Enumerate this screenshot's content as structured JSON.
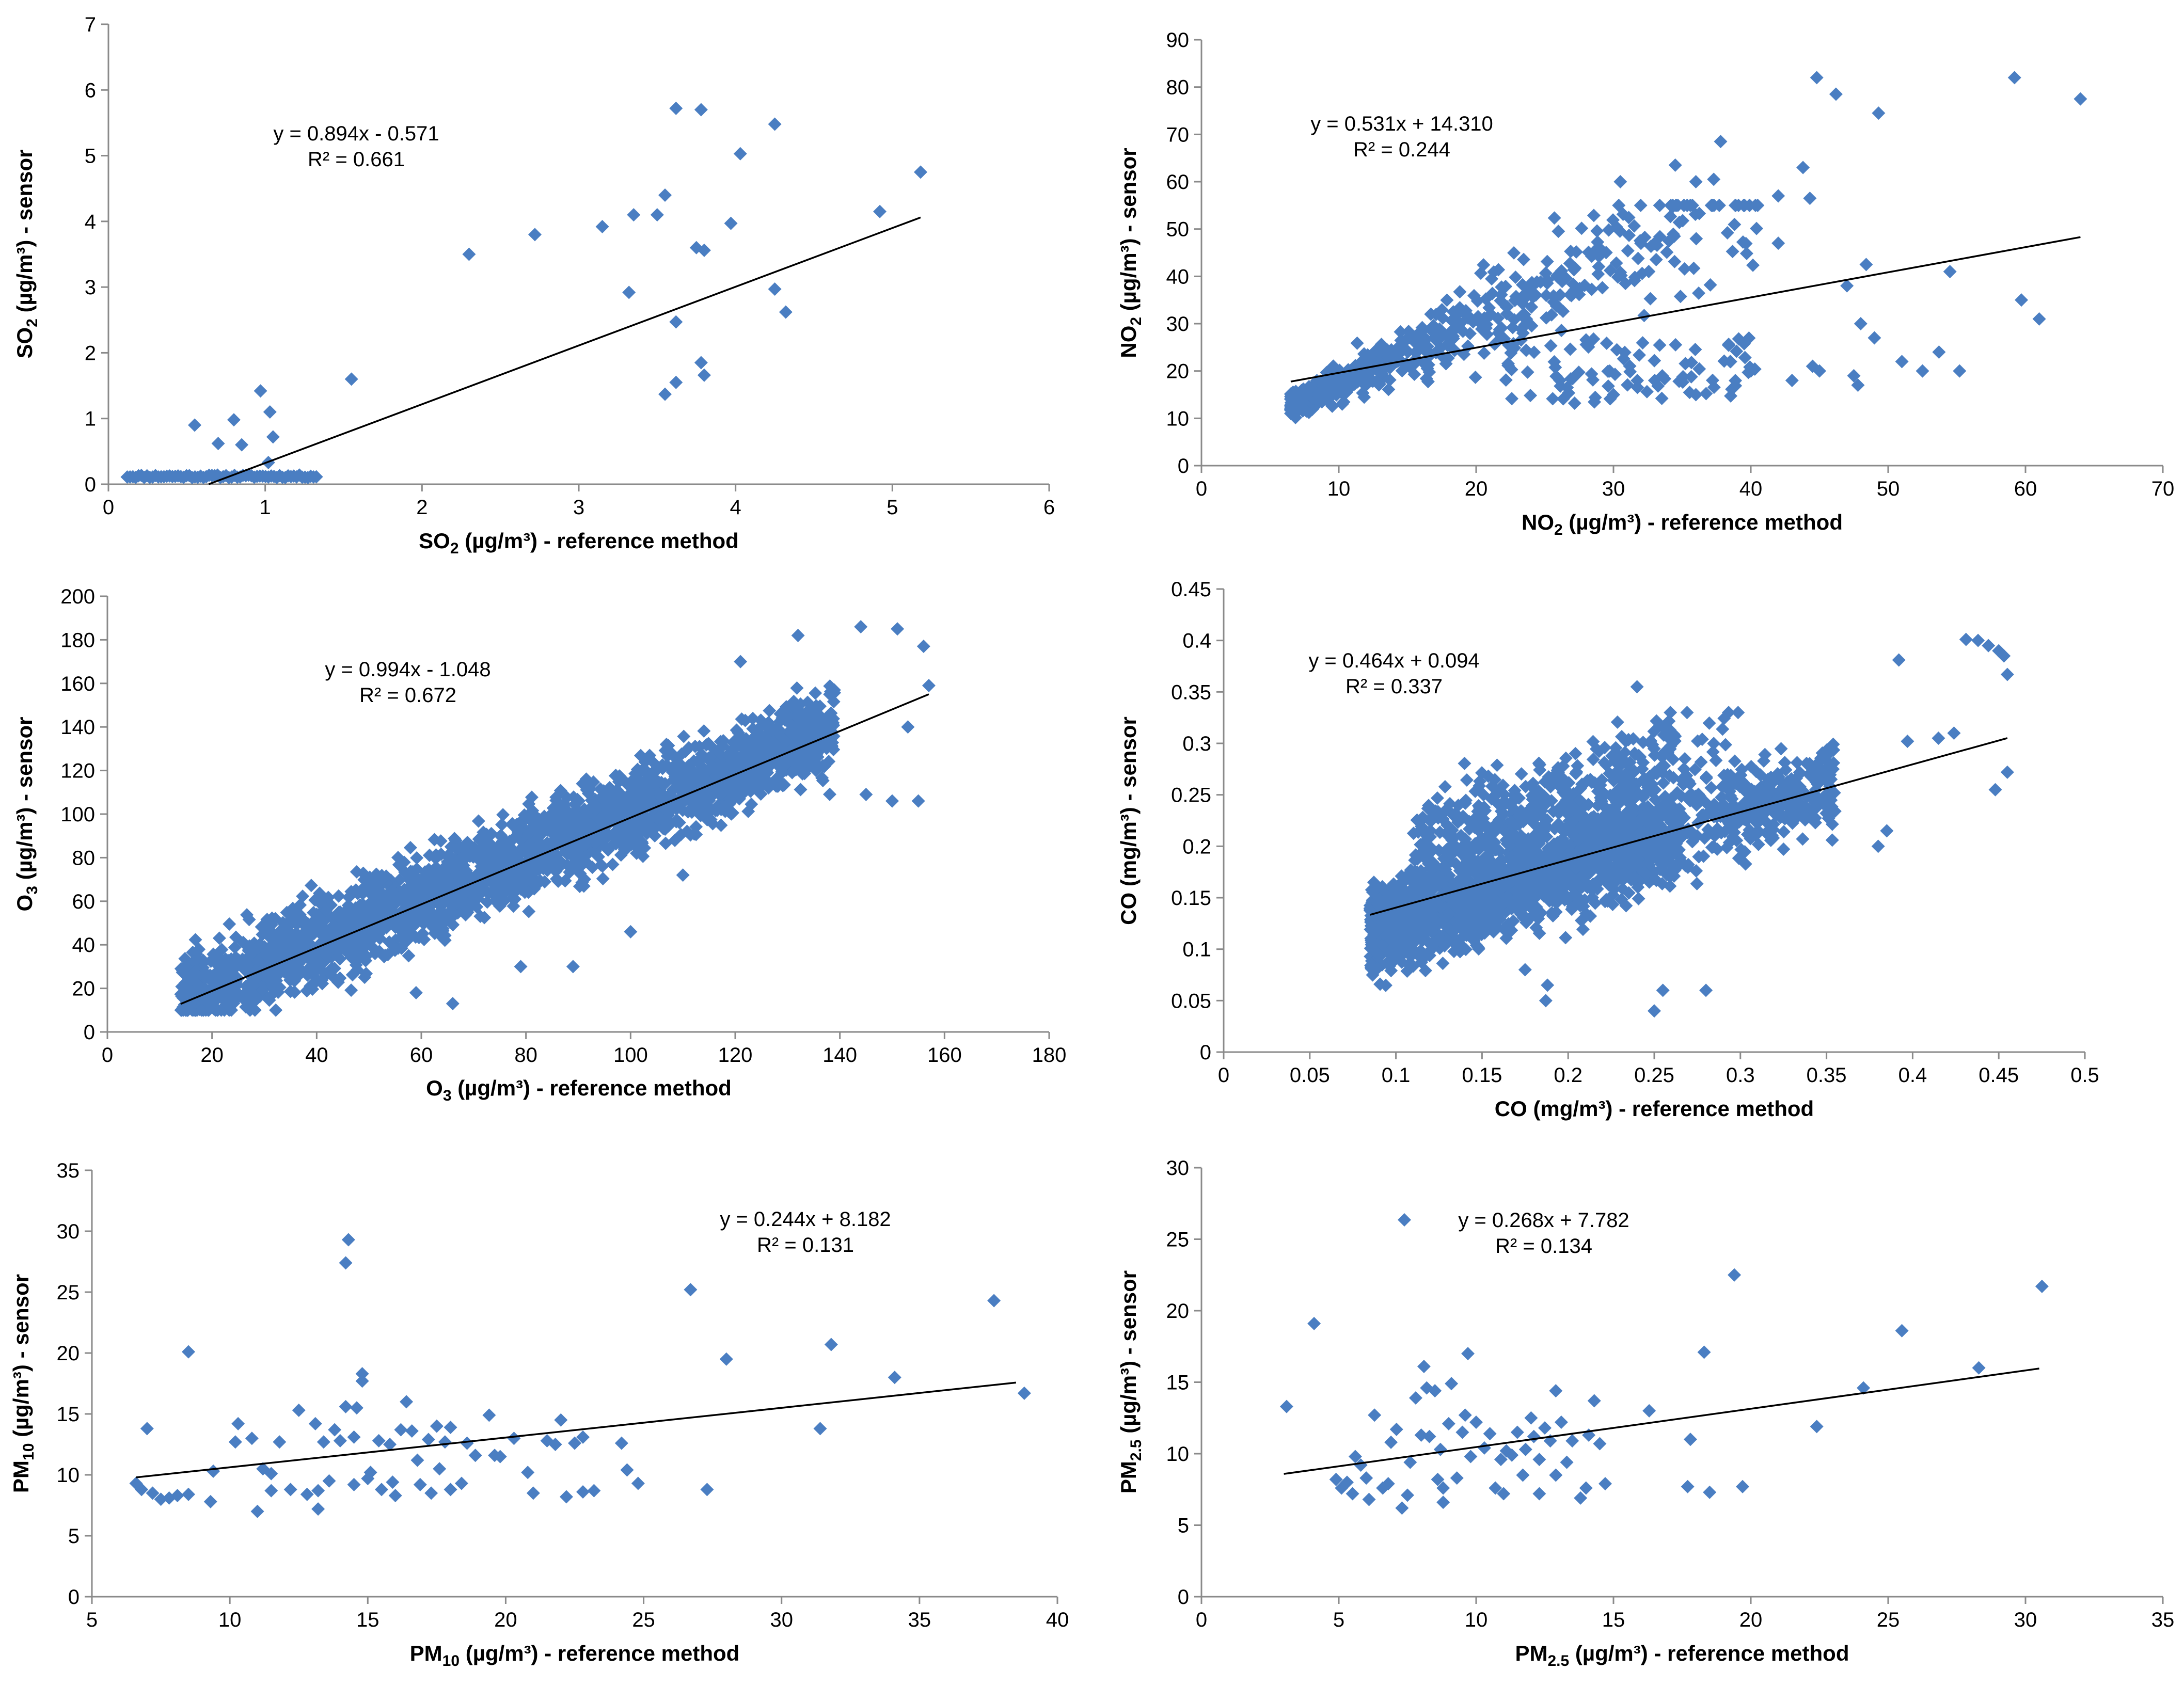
{
  "colors": {
    "marker": "#4a7ec2",
    "axis": "#8a8a8a",
    "trendline": "#000000",
    "background": "#ffffff"
  },
  "chart_data": [
    {
      "id": "so2",
      "type": "scatter",
      "xlabel": {
        "main": "SO",
        "sub": "2",
        "tail": " (µg/m³)  - reference method"
      },
      "ylabel": {
        "main": "SO",
        "sub": "2",
        "tail": " (µg/m³) - sensor"
      },
      "xlim": [
        0,
        6
      ],
      "xstep": 1,
      "ylim": [
        0,
        7
      ],
      "ystep": 1,
      "equation": "y = 0.894x - 0.571",
      "r2": "R² = 0.661",
      "trend": {
        "slope": 0.894,
        "intercept": -0.571,
        "x_range": [
          0.64,
          5.18
        ]
      },
      "gen": "so2",
      "points": [
        [
          0.55,
          0.9
        ],
        [
          0.7,
          0.62
        ],
        [
          0.8,
          0.98
        ],
        [
          0.85,
          0.6
        ],
        [
          0.97,
          1.42
        ],
        [
          1.03,
          1.1
        ],
        [
          1.05,
          0.72
        ],
        [
          1.02,
          0.33
        ],
        [
          1.55,
          1.6
        ],
        [
          2.3,
          3.5
        ],
        [
          2.72,
          3.8
        ],
        [
          3.15,
          3.92
        ],
        [
          3.32,
          2.92
        ],
        [
          3.35,
          4.1
        ],
        [
          3.5,
          4.1
        ],
        [
          3.55,
          4.4
        ],
        [
          3.55,
          1.37
        ],
        [
          3.62,
          5.72
        ],
        [
          3.62,
          2.47
        ],
        [
          3.62,
          1.55
        ],
        [
          3.75,
          3.6
        ],
        [
          3.78,
          5.7
        ],
        [
          3.78,
          1.85
        ],
        [
          3.8,
          3.56
        ],
        [
          3.8,
          1.66
        ],
        [
          3.97,
          3.97
        ],
        [
          4.03,
          5.03
        ],
        [
          4.25,
          5.48
        ],
        [
          4.25,
          2.97
        ],
        [
          4.32,
          2.62
        ],
        [
          4.92,
          4.15
        ],
        [
          5.18,
          4.75
        ]
      ]
    },
    {
      "id": "no2",
      "type": "scatter",
      "xlabel": {
        "main": "NO",
        "sub": "2",
        "tail": " (µg/m³)  - reference method"
      },
      "ylabel": {
        "main": "NO",
        "sub": "2",
        "tail": " (µg/m³) - sensor"
      },
      "xlim": [
        0,
        70
      ],
      "xstep": 10,
      "ylim": [
        0,
        90
      ],
      "ystep": 10,
      "equation": "y = 0.531x + 14.310",
      "r2": "R² = 0.244",
      "trend": {
        "slope": 0.531,
        "intercept": 14.31,
        "x_range": [
          6.5,
          64
        ]
      },
      "gen": "no2",
      "points": [
        [
          44.8,
          82
        ],
        [
          59.2,
          82
        ],
        [
          64,
          77.5
        ],
        [
          46.2,
          78.5
        ],
        [
          49.3,
          74.5
        ],
        [
          37.8,
          68.5
        ],
        [
          34.5,
          63.5
        ],
        [
          43.8,
          63
        ],
        [
          30.5,
          60
        ],
        [
          36,
          60
        ],
        [
          37.3,
          60.5
        ],
        [
          40.5,
          55
        ],
        [
          42,
          57
        ],
        [
          44.3,
          56.5
        ],
        [
          42,
          47
        ],
        [
          47,
          38
        ],
        [
          48.4,
          42.5
        ],
        [
          54.5,
          41
        ],
        [
          59.7,
          35
        ],
        [
          61,
          31
        ],
        [
          48,
          30
        ],
        [
          49,
          27
        ],
        [
          52.5,
          20
        ],
        [
          53.7,
          24
        ],
        [
          55.2,
          20
        ],
        [
          51,
          22
        ],
        [
          47.5,
          19
        ],
        [
          47.8,
          17
        ],
        [
          44.5,
          21
        ],
        [
          45,
          20
        ],
        [
          43,
          18
        ],
        [
          40,
          20
        ],
        [
          38.5,
          22
        ],
        [
          36,
          15
        ],
        [
          33,
          18
        ],
        [
          30,
          15
        ]
      ]
    },
    {
      "id": "o3",
      "type": "scatter",
      "xlabel": {
        "main": "O",
        "sub": "3",
        "tail": " (µg/m³)  - reference method"
      },
      "ylabel": {
        "main": "O",
        "sub": "3",
        "tail": " (µg/m³) - sensor"
      },
      "xlim": [
        0,
        180
      ],
      "xstep": 20,
      "ylim": [
        0,
        200
      ],
      "ystep": 20,
      "equation": "y = 0.994x - 1.048",
      "r2": "R² = 0.672",
      "trend": {
        "slope": 0.994,
        "intercept": -1.048,
        "x_range": [
          14,
          157
        ]
      },
      "gen": "o3",
      "points": [
        [
          144,
          186
        ],
        [
          151,
          185
        ],
        [
          156,
          177
        ],
        [
          157,
          159
        ],
        [
          153,
          140
        ],
        [
          145,
          109
        ],
        [
          150,
          106
        ],
        [
          155,
          106
        ],
        [
          132,
          182
        ],
        [
          121,
          170
        ],
        [
          110,
          72
        ],
        [
          100,
          46
        ],
        [
          89,
          30
        ],
        [
          79,
          30
        ],
        [
          66,
          13
        ],
        [
          59,
          18
        ],
        [
          18,
          10
        ]
      ]
    },
    {
      "id": "co",
      "type": "scatter",
      "xlabel": {
        "main": "CO",
        "sub": "",
        "tail": " (mg/m³)  - reference method"
      },
      "ylabel": {
        "main": "CO",
        "sub": "",
        "tail": " (mg/m³) - sensor"
      },
      "xlim": [
        0,
        0.5
      ],
      "xstep": 0.05,
      "ylim": [
        0,
        0.45
      ],
      "ystep": 0.05,
      "equation": "y = 0.464x + 0.094",
      "r2": "R² = 0.337",
      "trend": {
        "slope": 0.464,
        "intercept": 0.094,
        "x_range": [
          0.085,
          0.455
        ]
      },
      "gen": "co",
      "points": [
        [
          0.431,
          0.401
        ],
        [
          0.438,
          0.4
        ],
        [
          0.444,
          0.395
        ],
        [
          0.45,
          0.39
        ],
        [
          0.453,
          0.385
        ],
        [
          0.455,
          0.367
        ],
        [
          0.455,
          0.272
        ],
        [
          0.448,
          0.255
        ],
        [
          0.392,
          0.381
        ],
        [
          0.424,
          0.31
        ],
        [
          0.415,
          0.305
        ],
        [
          0.397,
          0.302
        ],
        [
          0.38,
          0.2
        ],
        [
          0.385,
          0.215
        ],
        [
          0.24,
          0.355
        ],
        [
          0.25,
          0.04
        ],
        [
          0.255,
          0.06
        ],
        [
          0.28,
          0.06
        ],
        [
          0.187,
          0.05
        ],
        [
          0.188,
          0.065
        ],
        [
          0.175,
          0.08
        ]
      ]
    },
    {
      "id": "pm10",
      "type": "scatter",
      "xlabel": {
        "main": "PM",
        "sub": "10",
        "tail": " (µg/m³)  - reference method"
      },
      "ylabel": {
        "main": "PM",
        "sub": "10",
        "tail": " (µg/m³) - sensor"
      },
      "xlim": [
        5,
        40
      ],
      "xstep": 5,
      "ylim": [
        0,
        35
      ],
      "ystep": 5,
      "equation": "y = 0.244x + 8.182",
      "r2": "R² = 0.131",
      "trend": {
        "slope": 0.244,
        "intercept": 8.182,
        "x_range": [
          6.6,
          38.5
        ]
      },
      "gen": "none",
      "points": [
        [
          6.6,
          9.3
        ],
        [
          6.8,
          8.8
        ],
        [
          7,
          13.8
        ],
        [
          7.2,
          8.5
        ],
        [
          7.5,
          8
        ],
        [
          7.8,
          8.1
        ],
        [
          8.1,
          8.3
        ],
        [
          8.5,
          8.4
        ],
        [
          8.5,
          20.1
        ],
        [
          9.3,
          7.8
        ],
        [
          9.4,
          10.3
        ],
        [
          10.2,
          12.7
        ],
        [
          10.3,
          14.2
        ],
        [
          10.8,
          13
        ],
        [
          11,
          7
        ],
        [
          11.2,
          10.5
        ],
        [
          11.5,
          10.1
        ],
        [
          11.5,
          8.7
        ],
        [
          11.8,
          12.7
        ],
        [
          12.2,
          8.8
        ],
        [
          12.5,
          15.3
        ],
        [
          12.8,
          8.4
        ],
        [
          13.1,
          14.2
        ],
        [
          13.2,
          8.7
        ],
        [
          13.2,
          7.2
        ],
        [
          13.4,
          12.7
        ],
        [
          13.6,
          9.5
        ],
        [
          13.8,
          13.7
        ],
        [
          14,
          12.8
        ],
        [
          14.2,
          15.6
        ],
        [
          14.2,
          27.4
        ],
        [
          14.3,
          29.3
        ],
        [
          14.5,
          13.1
        ],
        [
          14.5,
          9.2
        ],
        [
          14.6,
          15.5
        ],
        [
          14.8,
          17.7
        ],
        [
          14.8,
          18.3
        ],
        [
          15,
          9.7
        ],
        [
          15.1,
          10.2
        ],
        [
          15.4,
          12.8
        ],
        [
          15.5,
          8.8
        ],
        [
          15.8,
          12.5
        ],
        [
          15.9,
          9.4
        ],
        [
          16,
          8.3
        ],
        [
          16.2,
          13.7
        ],
        [
          16.4,
          16
        ],
        [
          16.6,
          13.6
        ],
        [
          16.8,
          11.2
        ],
        [
          16.9,
          9.2
        ],
        [
          17.2,
          12.9
        ],
        [
          17.3,
          8.5
        ],
        [
          17.5,
          14
        ],
        [
          17.6,
          10.5
        ],
        [
          17.8,
          12.7
        ],
        [
          18,
          13.9
        ],
        [
          18,
          8.8
        ],
        [
          18.4,
          9.3
        ],
        [
          18.6,
          12.6
        ],
        [
          18.9,
          11.6
        ],
        [
          19.4,
          14.9
        ],
        [
          19.6,
          11.6
        ],
        [
          19.8,
          11.5
        ],
        [
          20.3,
          13
        ],
        [
          20.8,
          10.2
        ],
        [
          21,
          8.5
        ],
        [
          21.5,
          12.8
        ],
        [
          21.8,
          12.5
        ],
        [
          22,
          14.5
        ],
        [
          22.2,
          8.2
        ],
        [
          22.5,
          12.6
        ],
        [
          22.8,
          13.1
        ],
        [
          22.8,
          8.6
        ],
        [
          23.2,
          8.7
        ],
        [
          24.2,
          12.6
        ],
        [
          24.4,
          10.4
        ],
        [
          24.8,
          9.3
        ],
        [
          26.7,
          25.2
        ],
        [
          27.3,
          8.8
        ],
        [
          28,
          19.5
        ],
        [
          31.4,
          13.8
        ],
        [
          31.8,
          20.7
        ],
        [
          34.1,
          18
        ],
        [
          37.7,
          24.3
        ],
        [
          38.8,
          16.7
        ]
      ]
    },
    {
      "id": "pm25",
      "type": "scatter",
      "xlabel": {
        "main": "PM",
        "sub": "2.5",
        "tail": " (µg/m³)  - reference method"
      },
      "ylabel": {
        "main": "PM",
        "sub": "2.5",
        "tail": " (µg/m³) - sensor"
      },
      "xlim": [
        0,
        35
      ],
      "xstep": 5,
      "ylim": [
        0,
        30
      ],
      "ystep": 5,
      "equation": "y = 0.268x + 7.782",
      "r2": "R² = 0.134",
      "trend": {
        "slope": 0.268,
        "intercept": 7.782,
        "x_range": [
          3,
          30.5
        ]
      },
      "legend_marker": true,
      "gen": "none",
      "points": [
        [
          3.1,
          13.3
        ],
        [
          4.1,
          19.1
        ],
        [
          4.9,
          8.2
        ],
        [
          5.1,
          7.6
        ],
        [
          5.3,
          8
        ],
        [
          5.5,
          7.2
        ],
        [
          5.6,
          9.8
        ],
        [
          5.8,
          9.2
        ],
        [
          6,
          8.3
        ],
        [
          6.1,
          6.8
        ],
        [
          6.3,
          12.7
        ],
        [
          6.6,
          7.6
        ],
        [
          6.8,
          7.9
        ],
        [
          6.9,
          10.8
        ],
        [
          7.1,
          11.7
        ],
        [
          7.3,
          6.2
        ],
        [
          7.5,
          7.1
        ],
        [
          7.6,
          9.4
        ],
        [
          7.8,
          13.9
        ],
        [
          8,
          11.3
        ],
        [
          8.1,
          16.1
        ],
        [
          8.2,
          14.6
        ],
        [
          8.3,
          11.2
        ],
        [
          8.5,
          14.4
        ],
        [
          8.6,
          8.2
        ],
        [
          8.7,
          10.3
        ],
        [
          8.8,
          7.6
        ],
        [
          8.8,
          6.6
        ],
        [
          9,
          12.1
        ],
        [
          9.1,
          14.9
        ],
        [
          9.3,
          8.3
        ],
        [
          9.5,
          11.5
        ],
        [
          9.6,
          12.7
        ],
        [
          9.7,
          17
        ],
        [
          9.8,
          9.8
        ],
        [
          10,
          12.2
        ],
        [
          10.3,
          10.4
        ],
        [
          10.5,
          11.4
        ],
        [
          10.7,
          7.6
        ],
        [
          10.9,
          9.6
        ],
        [
          11,
          7.2
        ],
        [
          11.1,
          10.2
        ],
        [
          11.3,
          9.9
        ],
        [
          11.5,
          11.5
        ],
        [
          11.7,
          8.5
        ],
        [
          11.8,
          10.3
        ],
        [
          12,
          12.5
        ],
        [
          12.1,
          11.2
        ],
        [
          12.3,
          9.6
        ],
        [
          12.3,
          7.2
        ],
        [
          12.5,
          11.8
        ],
        [
          12.7,
          10.9
        ],
        [
          12.9,
          14.4
        ],
        [
          12.9,
          8.5
        ],
        [
          13.1,
          12.2
        ],
        [
          13.3,
          9.4
        ],
        [
          13.5,
          10.9
        ],
        [
          13.8,
          6.9
        ],
        [
          14,
          7.6
        ],
        [
          14.1,
          11.3
        ],
        [
          14.3,
          13.7
        ],
        [
          14.5,
          10.7
        ],
        [
          14.7,
          7.9
        ],
        [
          16.3,
          13
        ],
        [
          17.7,
          7.7
        ],
        [
          17.8,
          11
        ],
        [
          18.3,
          17.1
        ],
        [
          18.5,
          7.3
        ],
        [
          19.4,
          22.5
        ],
        [
          19.7,
          7.7
        ],
        [
          22.4,
          11.9
        ],
        [
          24.1,
          14.6
        ],
        [
          25.5,
          18.6
        ],
        [
          28.3,
          16
        ],
        [
          30.6,
          21.7
        ]
      ]
    }
  ]
}
